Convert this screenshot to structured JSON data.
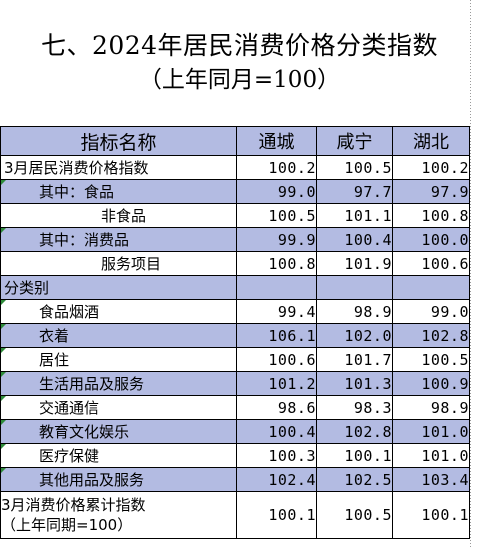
{
  "title": "七、2024年居民消费价格分类指数",
  "subtitle": "（上年同月=100）",
  "table": {
    "headers": [
      "指标名称",
      "通城",
      "咸宁",
      "湖北"
    ],
    "rows": [
      {
        "label": "3月居民消费价格指数",
        "values": [
          "100.2",
          "100.5",
          "100.2"
        ]
      },
      {
        "label": "其中：食品",
        "values": [
          "99.0",
          "97.7",
          "97.9"
        ]
      },
      {
        "label": "非食品",
        "values": [
          "100.5",
          "101.1",
          "100.8"
        ]
      },
      {
        "label": "其中：消费品",
        "values": [
          "99.9",
          "100.4",
          "100.0"
        ]
      },
      {
        "label": "服务项目",
        "values": [
          "100.8",
          "101.9",
          "100.6"
        ]
      },
      {
        "label": "分类别",
        "values": [
          "",
          "",
          ""
        ]
      },
      {
        "label": "食品烟酒",
        "values": [
          "99.4",
          "98.9",
          "99.0"
        ]
      },
      {
        "label": "衣着",
        "values": [
          "106.1",
          "102.0",
          "102.8"
        ]
      },
      {
        "label": "居住",
        "values": [
          "100.6",
          "101.7",
          "100.5"
        ]
      },
      {
        "label": "生活用品及服务",
        "values": [
          "101.2",
          "101.3",
          "100.9"
        ]
      },
      {
        "label": "交通通信",
        "values": [
          "98.6",
          "98.3",
          "98.9"
        ]
      },
      {
        "label": "教育文化娱乐",
        "values": [
          "100.4",
          "102.8",
          "101.0"
        ]
      },
      {
        "label": "医疗保健",
        "values": [
          "100.3",
          "100.1",
          "101.0"
        ]
      },
      {
        "label": "其他用品及服务",
        "values": [
          "102.4",
          "102.5",
          "103.4"
        ]
      }
    ],
    "cumulative": {
      "label_line1": "3月消费价格累计指数",
      "label_line2": "（上年同期=100）",
      "values": [
        "100.1",
        "100.5",
        "100.1"
      ]
    }
  },
  "colors": {
    "header_fill": "#b3bbe2",
    "row_fill": "#b3bbe2",
    "cell_marker": "#2e8b3a"
  }
}
